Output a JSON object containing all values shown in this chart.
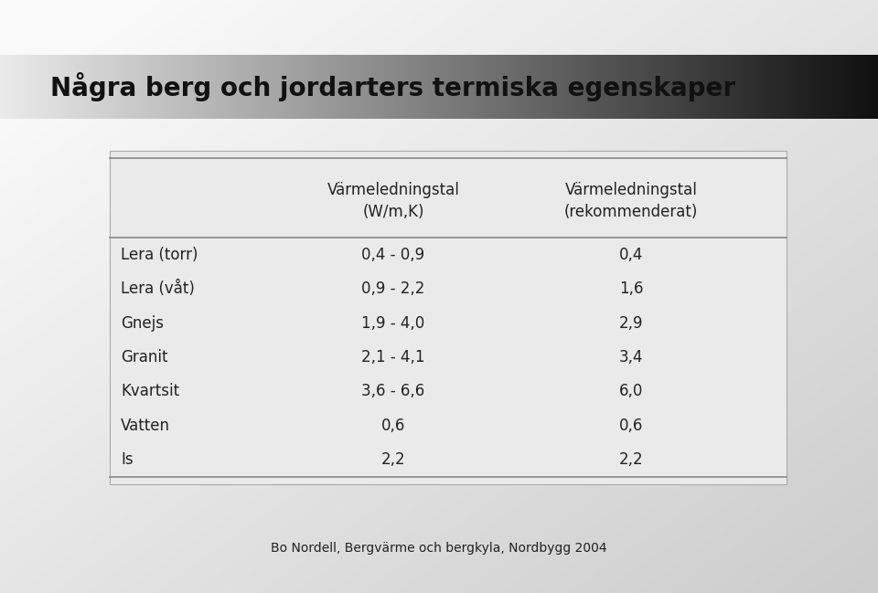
{
  "title": "Några berg och jordarters termiska egenskaper",
  "col_headers": [
    "",
    "Värmeledningstal\n(W/m,K)",
    "Värmeledningstal\n(rekommenderat)"
  ],
  "rows": [
    [
      "Lera (torr)",
      "0,4 - 0,9",
      "0,4"
    ],
    [
      "Lera (våt)",
      "0,9 - 2,2",
      "1,6"
    ],
    [
      "Gnejs",
      "1,9 - 4,0",
      "2,9"
    ],
    [
      "Granit",
      "2,1 - 4,1",
      "3,4"
    ],
    [
      "Kvartsit",
      "3,6 - 6,6",
      "6,0"
    ],
    [
      "Vatten",
      "0,6",
      "0,6"
    ],
    [
      "Is",
      "2,2",
      "2,2"
    ]
  ],
  "footer": "Bo Nordell, Bergvärme och bergkyla, Nordbygg 2004",
  "title_color": "#111111",
  "text_color": "#222222",
  "title_fontsize": 20,
  "header_fontsize": 12,
  "body_fontsize": 12,
  "footer_fontsize": 10
}
